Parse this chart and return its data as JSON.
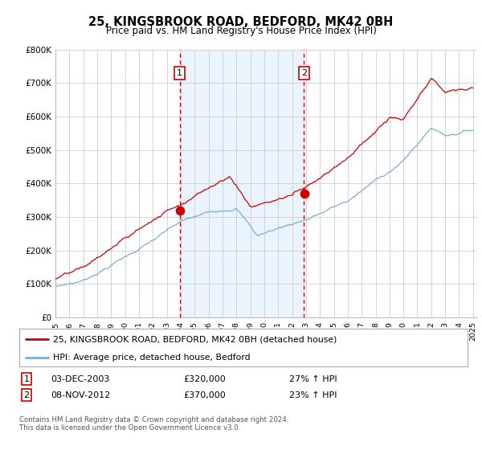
{
  "title": "25, KINGSBROOK ROAD, BEDFORD, MK42 0BH",
  "subtitle": "Price paid vs. HM Land Registry's House Price Index (HPI)",
  "bg_color": "#ffffff",
  "plot_bg_color": "#ffffff",
  "grid_color": "#cccccc",
  "ylim": [
    0,
    800000
  ],
  "yticks": [
    0,
    100000,
    200000,
    300000,
    400000,
    500000,
    600000,
    700000,
    800000
  ],
  "ytick_labels": [
    "£0",
    "£100K",
    "£200K",
    "£300K",
    "£400K",
    "£500K",
    "£600K",
    "£700K",
    "£800K"
  ],
  "hpi_color": "#7aadd4",
  "price_color": "#cc0000",
  "sale1_date": 2003.92,
  "sale1_price": 320000,
  "sale2_date": 2012.85,
  "sale2_price": 370000,
  "legend_line1": "25, KINGSBROOK ROAD, BEDFORD, MK42 0BH (detached house)",
  "legend_line2": "HPI: Average price, detached house, Bedford",
  "table_row1": [
    "1",
    "03-DEC-2003",
    "£320,000",
    "27% ↑ HPI"
  ],
  "table_row2": [
    "2",
    "08-NOV-2012",
    "£370,000",
    "23% ↑ HPI"
  ],
  "footer": "Contains HM Land Registry data © Crown copyright and database right 2024.\nThis data is licensed under the Open Government Licence v3.0.",
  "shade_color": "#ddeeff",
  "dashed_color": "#cc0000"
}
